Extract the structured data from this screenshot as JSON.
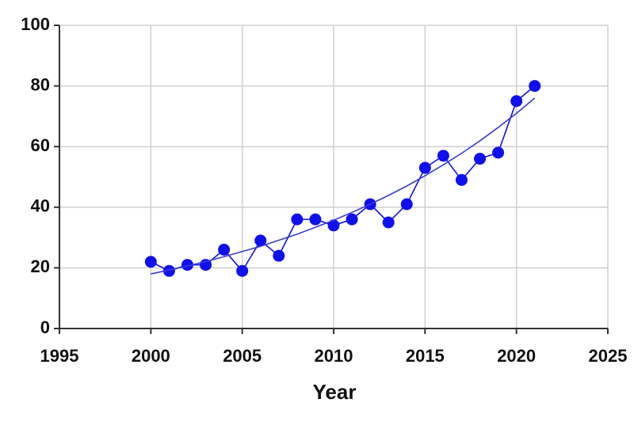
{
  "chart_data": {
    "type": "line",
    "x_label": "Year",
    "x": [
      2000,
      2001,
      2002,
      2003,
      2004,
      2005,
      2006,
      2007,
      2008,
      2009,
      2010,
      2011,
      2012,
      2013,
      2014,
      2015,
      2016,
      2017,
      2018,
      2019,
      2020,
      2021
    ],
    "series": [
      {
        "color": "#1010ee",
        "markers": true,
        "values": [
          22,
          19,
          21,
          21,
          26,
          19,
          29,
          24,
          36,
          36,
          34,
          36,
          41,
          35,
          41,
          53,
          57,
          49,
          56,
          58,
          75,
          80
        ]
      },
      {
        "color": "#3a3ad8",
        "markers": false,
        "values": [
          18,
          19.3,
          20.6,
          22.1,
          23.7,
          25.4,
          27.1,
          29.1,
          31.1,
          33.4,
          35.7,
          38.3,
          41.0,
          43.9,
          47.0,
          50.4,
          54.0,
          57.8,
          61.9,
          66.3,
          71.0,
          76.0
        ]
      }
    ],
    "xlim": [
      1995,
      2025
    ],
    "xticks": [
      1995,
      2000,
      2005,
      2010,
      2015,
      2020,
      2025
    ],
    "ylim": [
      0,
      100
    ],
    "yticks": [
      0,
      20,
      40,
      60,
      80,
      100
    ],
    "grid": true
  }
}
